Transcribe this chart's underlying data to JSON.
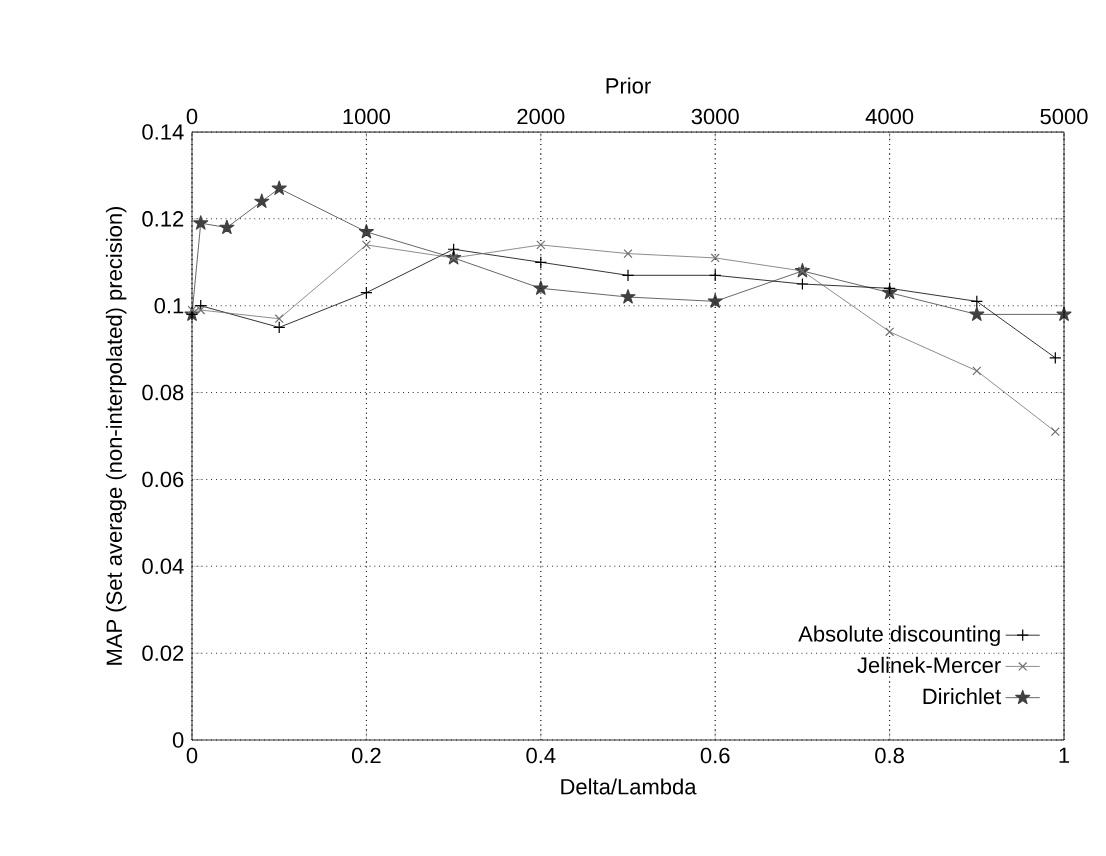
{
  "chart_data": {
    "type": "line",
    "xlabel": "Delta/Lambda",
    "x2label": "Prior",
    "ylabel": "MAP (Set average (non-interpolated) precision)",
    "xlim": [
      0,
      1
    ],
    "xticks": [
      0,
      0.2,
      0.4,
      0.6,
      0.8,
      1
    ],
    "x2lim": [
      0,
      5000
    ],
    "x2ticks": [
      0,
      1000,
      2000,
      3000,
      4000,
      5000
    ],
    "ylim": [
      0,
      0.14
    ],
    "yticks": [
      0,
      0.02,
      0.04,
      0.06,
      0.08,
      0.1,
      0.12,
      0.14
    ],
    "grid": true,
    "legend": "bottom right",
    "line_style": "solid",
    "series": [
      {
        "name": "Absolute discounting",
        "color": "#000000",
        "marker": "plus",
        "x": [
          0,
          0.01,
          0.1,
          0.2,
          0.3,
          0.4,
          0.5,
          0.6,
          0.7,
          0.8,
          0.9,
          0.99
        ],
        "values": [
          0.098,
          0.1,
          0.095,
          0.103,
          0.113,
          0.11,
          0.107,
          0.107,
          0.105,
          0.104,
          0.101,
          0.088
        ]
      },
      {
        "name": "Jelinek-Mercer",
        "color": "#707070",
        "marker": "cross",
        "x": [
          0,
          0.01,
          0.1,
          0.2,
          0.3,
          0.4,
          0.5,
          0.6,
          0.7,
          0.8,
          0.9,
          0.99
        ],
        "values": [
          0.099,
          0.099,
          0.097,
          0.114,
          0.111,
          0.114,
          0.112,
          0.111,
          0.108,
          0.094,
          0.085,
          0.071
        ]
      },
      {
        "name": "Dirichlet",
        "color": "#404040",
        "marker": "star",
        "axis": "x2",
        "x": [
          0,
          50,
          200,
          400,
          500,
          1000,
          1500,
          2000,
          2500,
          3000,
          3500,
          4000,
          4500,
          5000
        ],
        "values": [
          0.098,
          0.119,
          0.118,
          0.124,
          0.127,
          0.117,
          0.111,
          0.104,
          0.102,
          0.101,
          0.108,
          0.103,
          0.098,
          0.098
        ]
      }
    ]
  }
}
